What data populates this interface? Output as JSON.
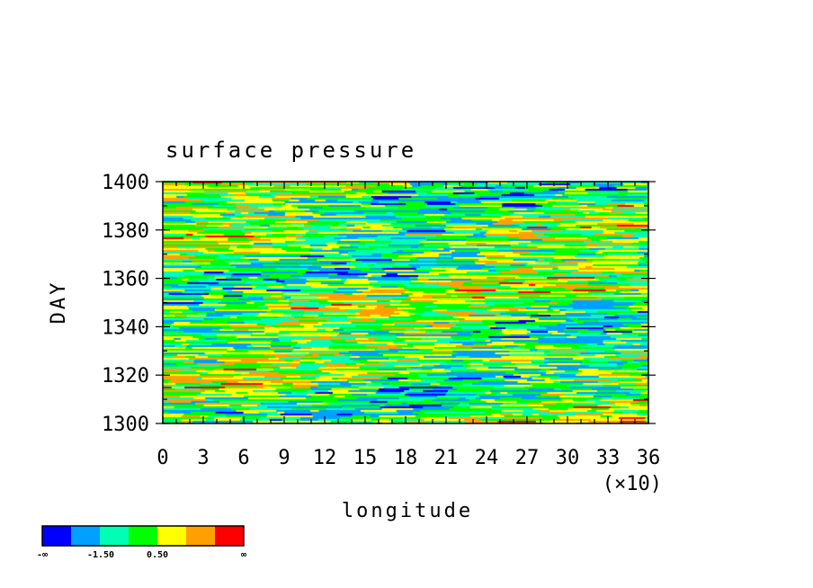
{
  "chart_data": {
    "type": "heatmap",
    "title": "surface pressure",
    "xlabel": "longitude",
    "ylabel": "DAY",
    "x_multiplier_label": "(×10)",
    "xlim": [
      0,
      36
    ],
    "ylim": [
      1300,
      1400
    ],
    "x_ticks": [
      0,
      3,
      6,
      9,
      12,
      15,
      18,
      21,
      24,
      27,
      30,
      33,
      36
    ],
    "y_ticks": [
      1300,
      1320,
      1340,
      1360,
      1380,
      1400
    ],
    "colorbar": {
      "colors": [
        "#0000ff",
        "#00a0ff",
        "#00ffb4",
        "#00ff00",
        "#ffff00",
        "#ffa000",
        "#ff0000"
      ],
      "labels": [
        "-∞",
        "-1.50",
        "0.50",
        "∞"
      ]
    },
    "field_note": "noisy zonal streaks; mostly green/yellow with scattered blue lows and red highs"
  }
}
